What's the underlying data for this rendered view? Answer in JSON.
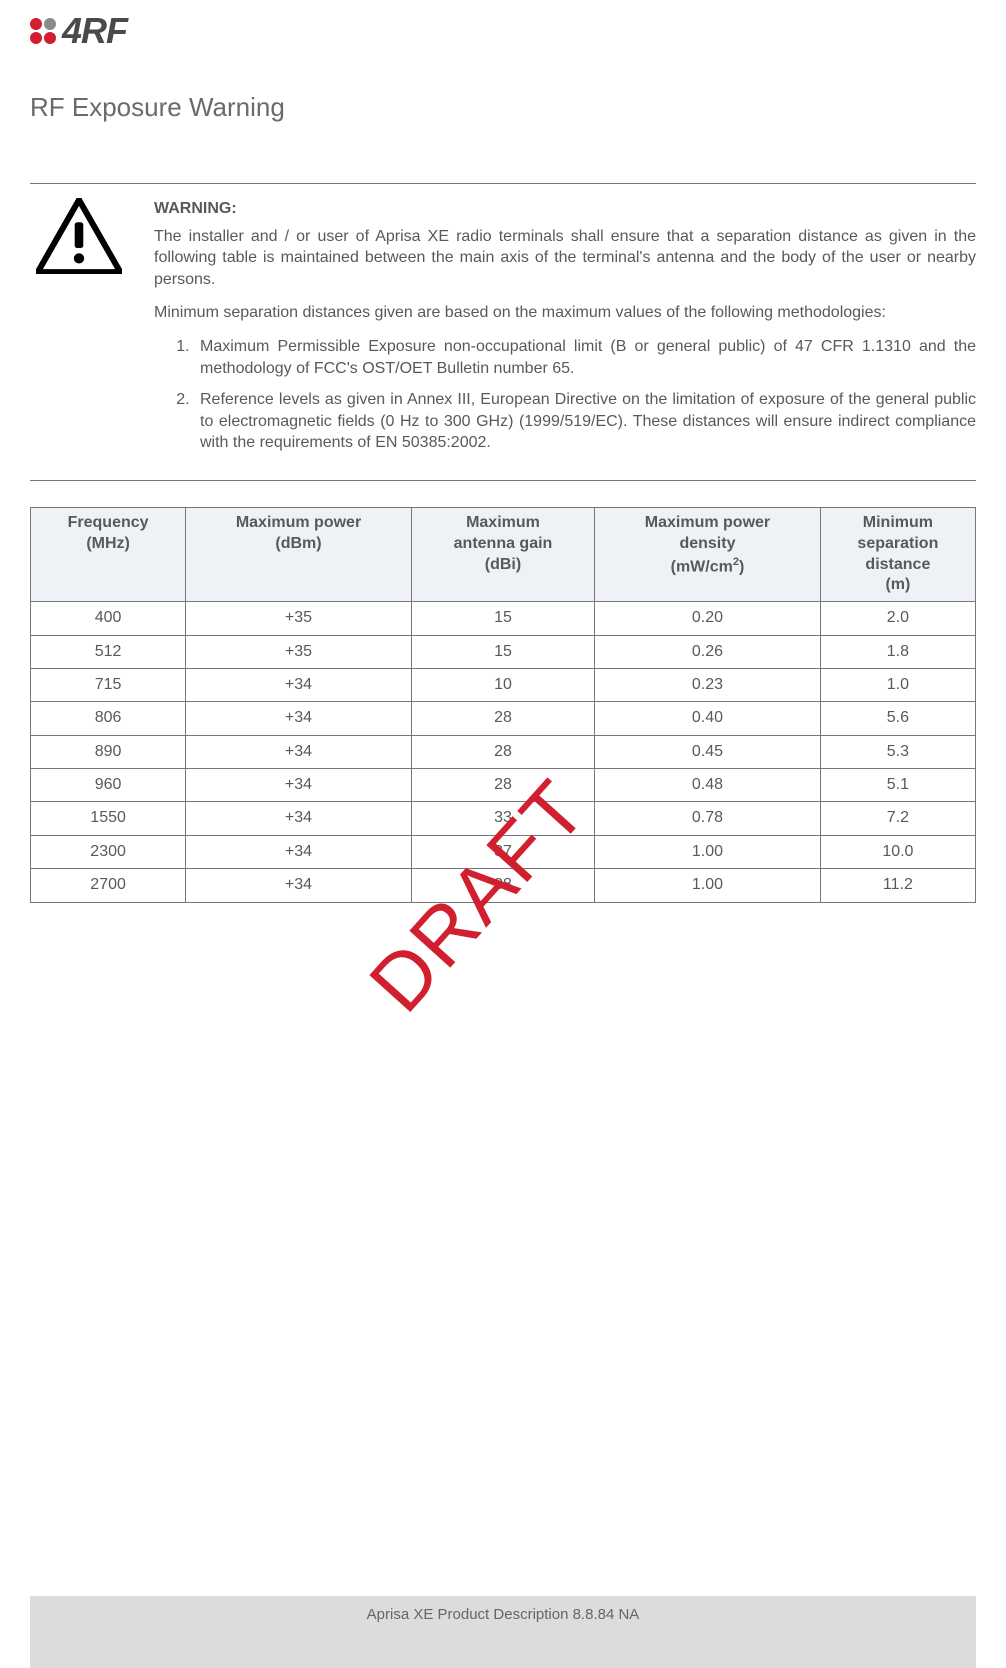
{
  "header": {
    "brand_text": "4RF"
  },
  "page_title": "RF Exposure Warning",
  "warning": {
    "title": "WARNING:",
    "para1": "The installer and / or user of Aprisa XE radio terminals shall ensure that a separation distance as given in the following table is maintained between the main axis of the terminal's antenna and the body of the user or nearby persons.",
    "para2": "Minimum separation distances given are based on the maximum values of the following methodologies:",
    "item1": "Maximum Permissible Exposure non-occupational limit (B or general public) of 47 CFR 1.1310 and the methodology of FCC's OST/OET Bulletin number 65.",
    "item2": "Reference levels as given in Annex III, European Directive on the limitation of exposure of the general public to electromagnetic fields (0 Hz to 300 GHz) (1999/519/EC). These distances will ensure indirect compliance with the requirements of EN 50385:2002."
  },
  "table": {
    "headers": {
      "freq_l1": "Frequency",
      "freq_l2": "(MHz)",
      "power_l1": "Maximum power",
      "power_l2": "(dBm)",
      "gain_l1": "Maximum",
      "gain_l2": "antenna gain",
      "gain_l3": "(dBi)",
      "dens_l1": "Maximum power",
      "dens_l2": "density",
      "dens_l3a": "(mW/cm",
      "dens_l3b": ")",
      "dist_l1": "Minimum",
      "dist_l2": "separation",
      "dist_l3": "distance",
      "dist_l4": "(m)"
    },
    "rows": [
      {
        "freq": "400",
        "power": "+35",
        "gain": "15",
        "density": "0.20",
        "distance": "2.0"
      },
      {
        "freq": "512",
        "power": "+35",
        "gain": "15",
        "density": "0.26",
        "distance": "1.8"
      },
      {
        "freq": "715",
        "power": "+34",
        "gain": "10",
        "density": "0.23",
        "distance": "1.0"
      },
      {
        "freq": "806",
        "power": "+34",
        "gain": "28",
        "density": "0.40",
        "distance": "5.6"
      },
      {
        "freq": "890",
        "power": "+34",
        "gain": "28",
        "density": "0.45",
        "distance": "5.3"
      },
      {
        "freq": "960",
        "power": "+34",
        "gain": "28",
        "density": "0.48",
        "distance": "5.1"
      },
      {
        "freq": "1550",
        "power": "+34",
        "gain": "33",
        "density": "0.78",
        "distance": "7.2"
      },
      {
        "freq": "2300",
        "power": "+34",
        "gain": "37",
        "density": "1.00",
        "distance": "10.0"
      },
      {
        "freq": "2700",
        "power": "+34",
        "gain": "38",
        "density": "1.00",
        "distance": "11.2"
      }
    ]
  },
  "watermark": "DRAFT",
  "footer": "Aprisa XE Product Description 8.8.84 NA"
}
